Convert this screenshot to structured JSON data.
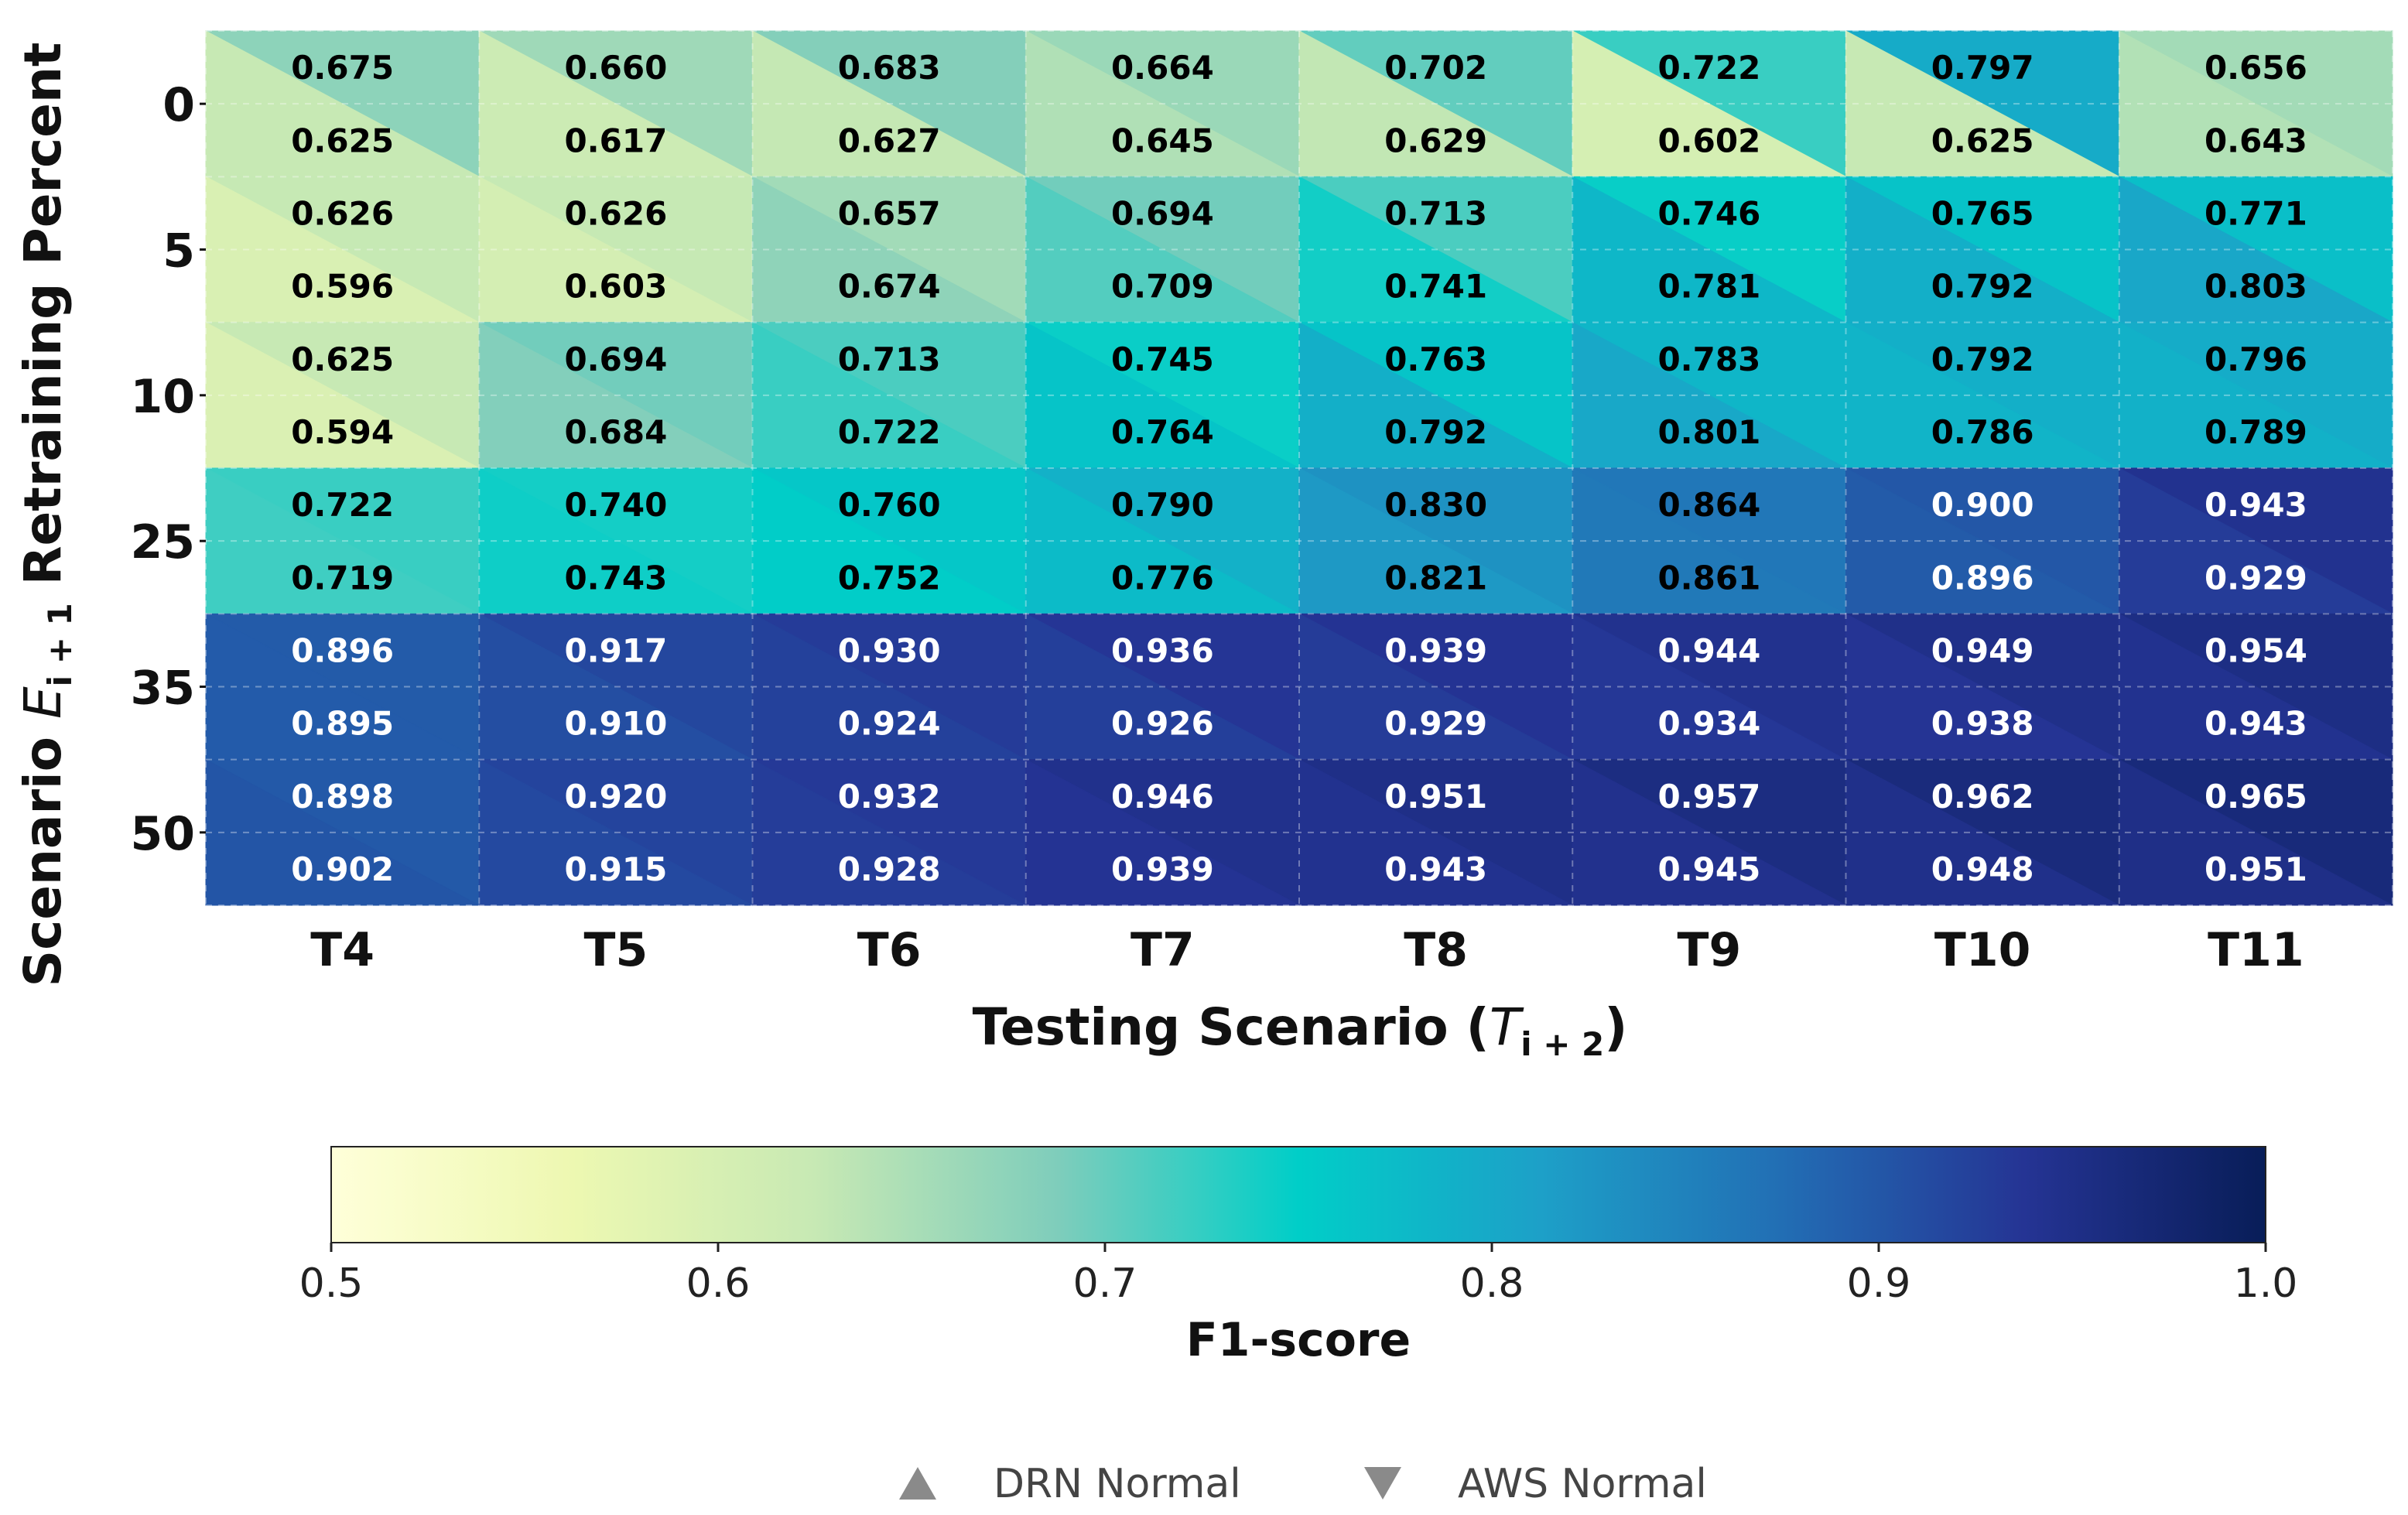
{
  "chart_data": {
    "type": "heatmap",
    "xlabel_main": "Testing Scenario (",
    "xlabel_sym": "T",
    "xlabel_sub": "i + 2",
    "xlabel_close": ")",
    "ylabel_main": "Scenario ",
    "ylabel_sym": "E",
    "ylabel_sub": "i + 1",
    "ylabel_tail": " Retraining Percent",
    "x_categories": [
      "T4",
      "T5",
      "T6",
      "T7",
      "T8",
      "T9",
      "T10",
      "T11"
    ],
    "y_categories": [
      "0",
      "5",
      "10",
      "25",
      "35",
      "50"
    ],
    "series": [
      {
        "name": "DRN Normal",
        "marker": "upper-triangle",
        "values": [
          [
            0.675,
            0.66,
            0.683,
            0.664,
            0.702,
            0.722,
            0.797,
            0.656
          ],
          [
            0.626,
            0.626,
            0.657,
            0.694,
            0.713,
            0.746,
            0.765,
            0.771
          ],
          [
            0.625,
            0.694,
            0.713,
            0.745,
            0.763,
            0.783,
            0.792,
            0.796
          ],
          [
            0.722,
            0.74,
            0.76,
            0.79,
            0.83,
            0.864,
            0.9,
            0.943
          ],
          [
            0.896,
            0.917,
            0.93,
            0.936,
            0.939,
            0.944,
            0.949,
            0.954
          ],
          [
            0.898,
            0.92,
            0.932,
            0.946,
            0.951,
            0.957,
            0.962,
            0.965
          ]
        ]
      },
      {
        "name": "AWS Normal",
        "marker": "lower-triangle",
        "values": [
          [
            0.625,
            0.617,
            0.627,
            0.645,
            0.629,
            0.602,
            0.625,
            0.643
          ],
          [
            0.596,
            0.603,
            0.674,
            0.709,
            0.741,
            0.781,
            0.792,
            0.803
          ],
          [
            0.594,
            0.684,
            0.722,
            0.764,
            0.792,
            0.801,
            0.786,
            0.789
          ],
          [
            0.719,
            0.743,
            0.752,
            0.776,
            0.821,
            0.861,
            0.896,
            0.929
          ],
          [
            0.895,
            0.91,
            0.924,
            0.926,
            0.929,
            0.934,
            0.938,
            0.943
          ],
          [
            0.902,
            0.915,
            0.928,
            0.939,
            0.943,
            0.945,
            0.948,
            0.951
          ]
        ]
      }
    ],
    "colorbar": {
      "label": "F1-score",
      "range": [
        0.5,
        1.0
      ],
      "ticks": [
        "0.5",
        "0.6",
        "0.7",
        "0.8",
        "0.9",
        "1.0"
      ],
      "colormap": "YlGnBu"
    },
    "grid": true,
    "legend": "bottom-center"
  }
}
